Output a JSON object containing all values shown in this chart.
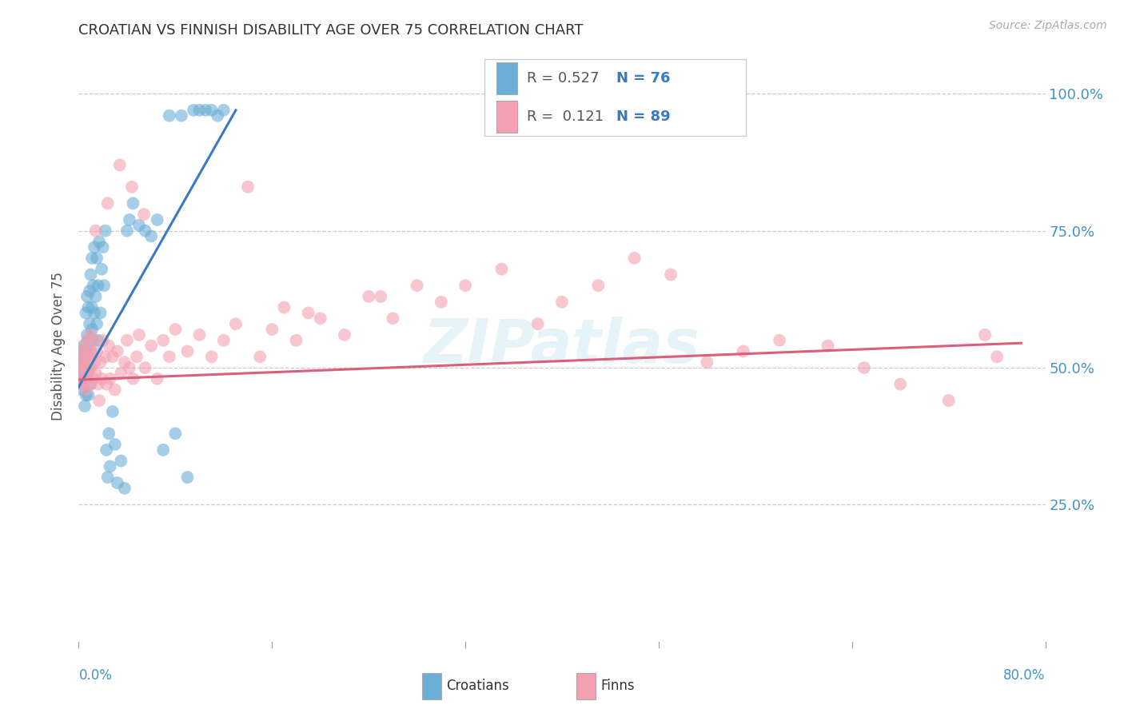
{
  "title": "CROATIAN VS FINNISH DISABILITY AGE OVER 75 CORRELATION CHART",
  "source": "Source: ZipAtlas.com",
  "ylabel": "Disability Age Over 75",
  "blue_color": "#6baed6",
  "pink_color": "#f4a0b0",
  "blue_line_color": "#3a7abf",
  "pink_line_color": "#d95f7a",
  "title_color": "#333333",
  "axis_label_color": "#4393c3",
  "watermark_color": "#add8e6",
  "background_color": "#ffffff",
  "xlim": [
    0.0,
    0.8
  ],
  "ylim": [
    0.0,
    1.08
  ],
  "yticks": [
    0.25,
    0.5,
    0.75,
    1.0
  ],
  "ytick_labels": [
    "25.0%",
    "50.0%",
    "75.0%",
    "100.0%"
  ],
  "croatians_x": [
    0.001,
    0.001,
    0.002,
    0.002,
    0.002,
    0.003,
    0.003,
    0.003,
    0.003,
    0.004,
    0.004,
    0.004,
    0.005,
    0.005,
    0.005,
    0.005,
    0.006,
    0.006,
    0.006,
    0.007,
    0.007,
    0.007,
    0.008,
    0.008,
    0.008,
    0.009,
    0.009,
    0.009,
    0.01,
    0.01,
    0.01,
    0.011,
    0.011,
    0.011,
    0.012,
    0.012,
    0.013,
    0.013,
    0.014,
    0.015,
    0.015,
    0.016,
    0.016,
    0.017,
    0.018,
    0.019,
    0.02,
    0.021,
    0.022,
    0.023,
    0.024,
    0.025,
    0.026,
    0.028,
    0.03,
    0.032,
    0.035,
    0.038,
    0.04,
    0.042,
    0.045,
    0.05,
    0.055,
    0.06,
    0.065,
    0.07,
    0.08,
    0.09,
    0.1,
    0.11,
    0.115,
    0.12,
    0.085,
    0.095,
    0.105,
    0.075
  ],
  "croatians_y": [
    0.49,
    0.5,
    0.48,
    0.51,
    0.52,
    0.47,
    0.5,
    0.53,
    0.46,
    0.49,
    0.51,
    0.54,
    0.43,
    0.5,
    0.52,
    0.48,
    0.53,
    0.6,
    0.45,
    0.56,
    0.63,
    0.48,
    0.55,
    0.61,
    0.45,
    0.58,
    0.64,
    0.5,
    0.53,
    0.67,
    0.47,
    0.57,
    0.61,
    0.7,
    0.55,
    0.65,
    0.6,
    0.72,
    0.63,
    0.58,
    0.7,
    0.55,
    0.65,
    0.73,
    0.6,
    0.68,
    0.72,
    0.65,
    0.75,
    0.35,
    0.3,
    0.38,
    0.32,
    0.42,
    0.36,
    0.29,
    0.33,
    0.28,
    0.75,
    0.77,
    0.8,
    0.76,
    0.75,
    0.74,
    0.77,
    0.35,
    0.38,
    0.3,
    0.97,
    0.97,
    0.96,
    0.97,
    0.96,
    0.97,
    0.97,
    0.96
  ],
  "finns_x": [
    0.001,
    0.002,
    0.002,
    0.003,
    0.003,
    0.004,
    0.004,
    0.005,
    0.005,
    0.006,
    0.006,
    0.007,
    0.007,
    0.008,
    0.008,
    0.009,
    0.009,
    0.01,
    0.01,
    0.011,
    0.012,
    0.012,
    0.013,
    0.014,
    0.015,
    0.016,
    0.017,
    0.018,
    0.019,
    0.02,
    0.022,
    0.023,
    0.025,
    0.026,
    0.028,
    0.03,
    0.032,
    0.035,
    0.038,
    0.04,
    0.042,
    0.045,
    0.048,
    0.05,
    0.055,
    0.06,
    0.065,
    0.07,
    0.075,
    0.08,
    0.09,
    0.1,
    0.11,
    0.12,
    0.13,
    0.15,
    0.16,
    0.17,
    0.18,
    0.2,
    0.22,
    0.24,
    0.26,
    0.28,
    0.3,
    0.32,
    0.35,
    0.38,
    0.4,
    0.43,
    0.46,
    0.49,
    0.52,
    0.55,
    0.58,
    0.62,
    0.65,
    0.68,
    0.72,
    0.75,
    0.76,
    0.014,
    0.024,
    0.034,
    0.044,
    0.054,
    0.14,
    0.19,
    0.25
  ],
  "finns_y": [
    0.5,
    0.49,
    0.51,
    0.48,
    0.52,
    0.47,
    0.53,
    0.5,
    0.54,
    0.46,
    0.51,
    0.48,
    0.55,
    0.52,
    0.49,
    0.53,
    0.47,
    0.5,
    0.56,
    0.52,
    0.48,
    0.55,
    0.51,
    0.49,
    0.53,
    0.47,
    0.44,
    0.51,
    0.48,
    0.55,
    0.52,
    0.47,
    0.54,
    0.48,
    0.52,
    0.46,
    0.53,
    0.49,
    0.51,
    0.55,
    0.5,
    0.48,
    0.52,
    0.56,
    0.5,
    0.54,
    0.48,
    0.55,
    0.52,
    0.57,
    0.53,
    0.56,
    0.52,
    0.55,
    0.58,
    0.52,
    0.57,
    0.61,
    0.55,
    0.59,
    0.56,
    0.63,
    0.59,
    0.65,
    0.62,
    0.65,
    0.68,
    0.58,
    0.62,
    0.65,
    0.7,
    0.67,
    0.51,
    0.53,
    0.55,
    0.54,
    0.5,
    0.47,
    0.44,
    0.56,
    0.52,
    0.75,
    0.8,
    0.87,
    0.83,
    0.78,
    0.83,
    0.6,
    0.63
  ],
  "cr_trendline_x": [
    0.0,
    0.13
  ],
  "cr_trendline_y": [
    0.465,
    0.97
  ],
  "fi_trendline_x": [
    0.0,
    0.78
  ],
  "fi_trendline_y": [
    0.478,
    0.545
  ]
}
